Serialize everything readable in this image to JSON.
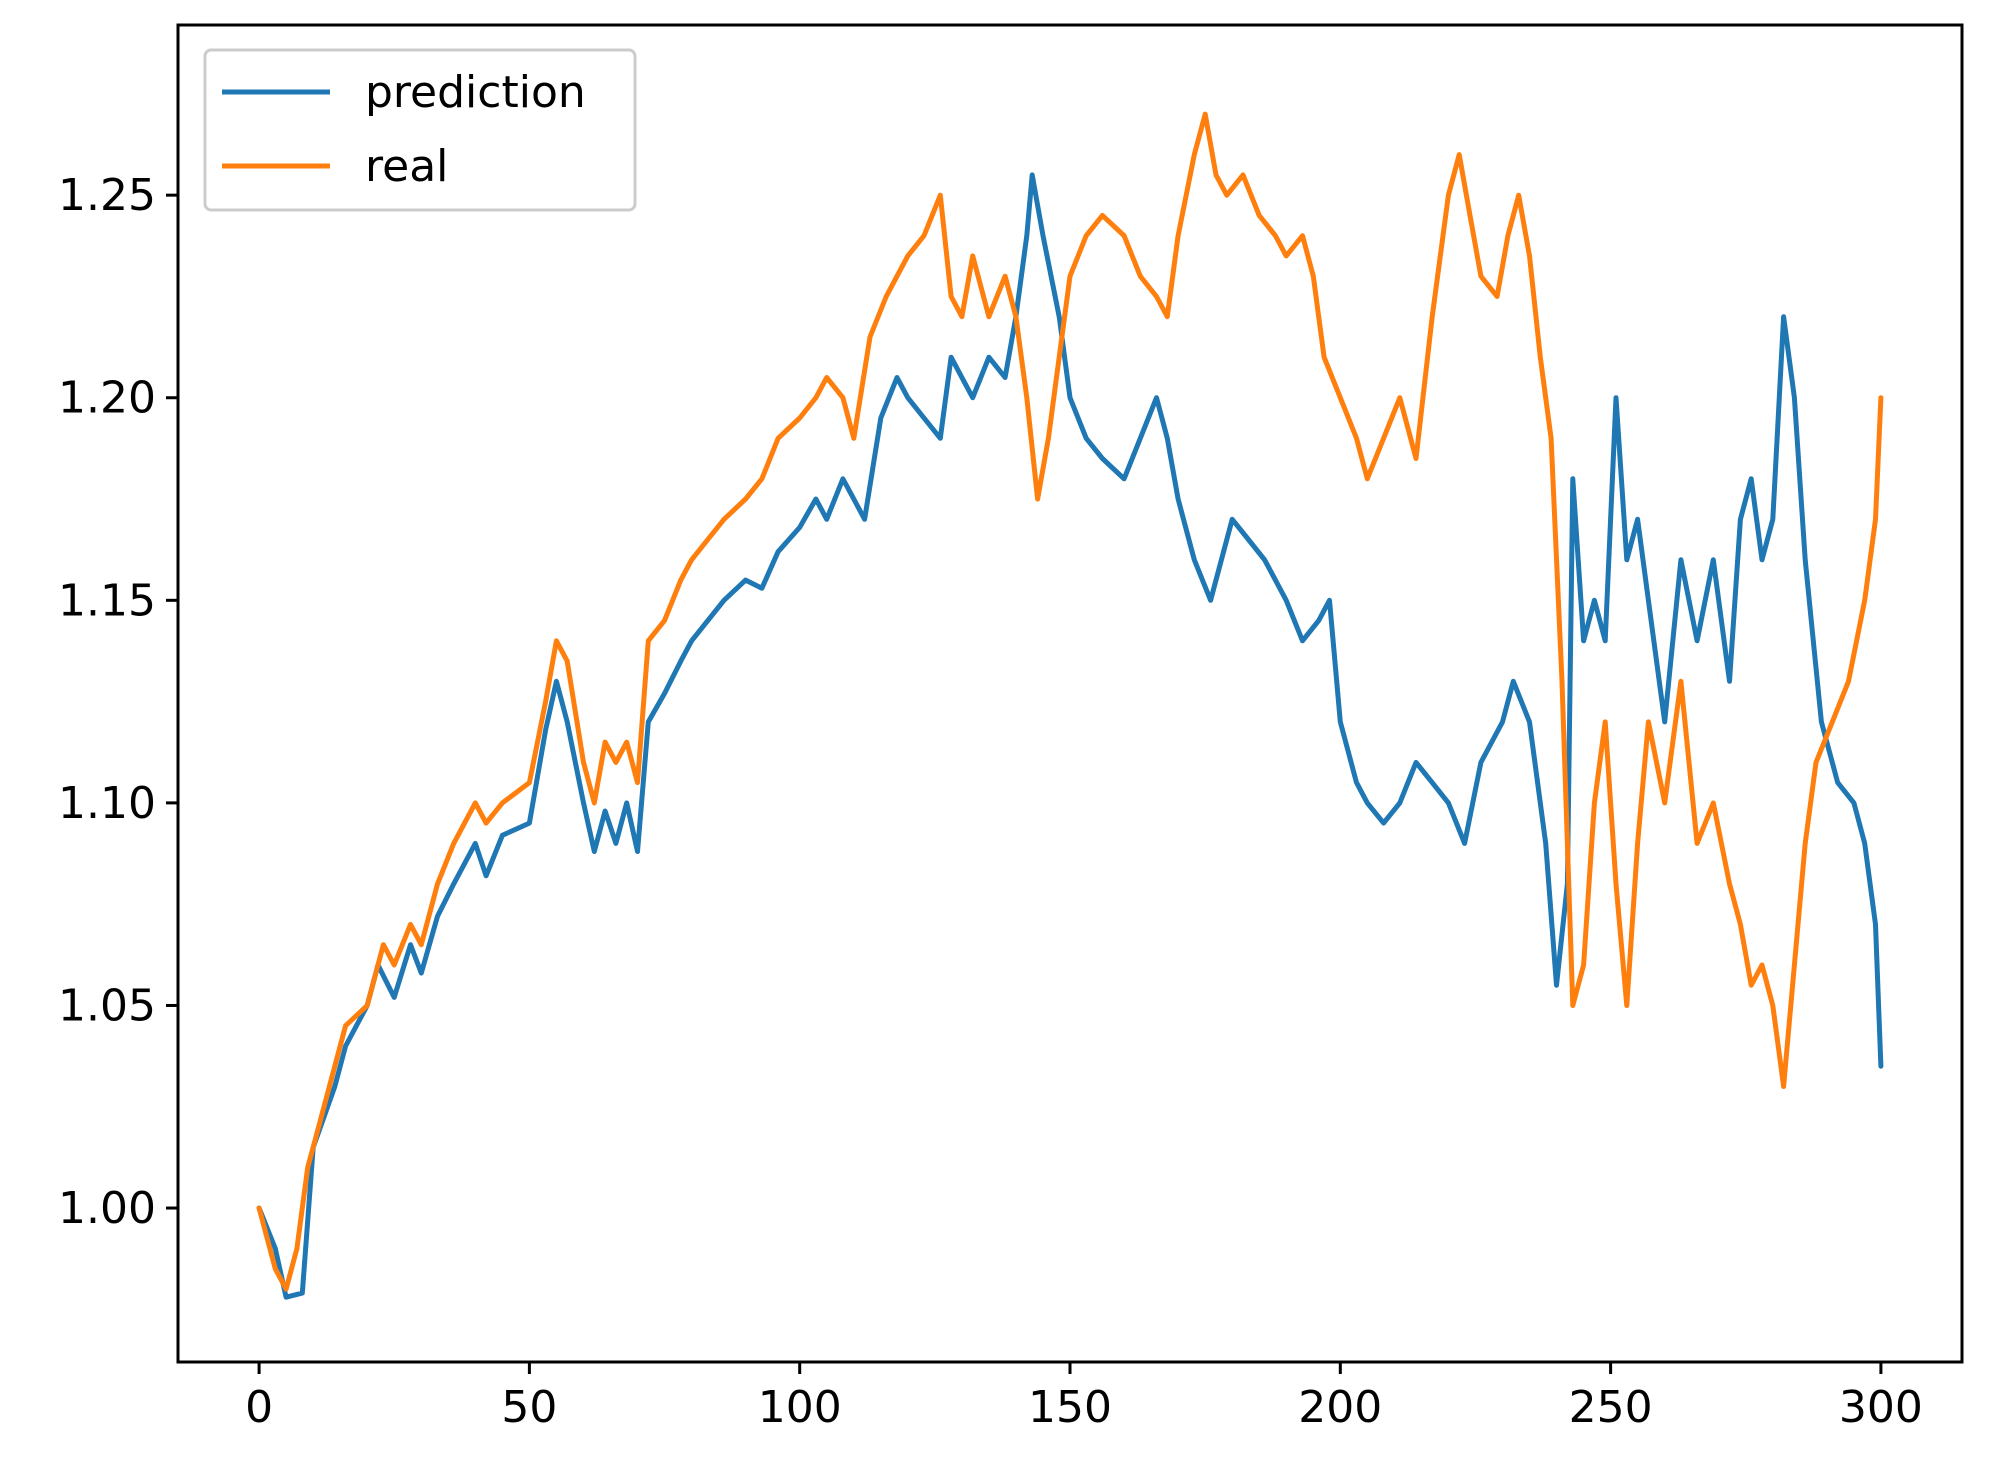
{
  "chart_data": {
    "type": "line",
    "title": "",
    "xlabel": "",
    "ylabel": "",
    "xlim": [
      -15,
      315
    ],
    "ylim": [
      0.962,
      1.292
    ],
    "x_ticks": [
      0,
      50,
      100,
      150,
      200,
      250,
      300
    ],
    "x_tick_labels": [
      "0",
      "50",
      "100",
      "150",
      "200",
      "250",
      "300"
    ],
    "y_ticks": [
      1.0,
      1.05,
      1.1,
      1.15,
      1.2,
      1.25
    ],
    "y_tick_labels": [
      "1.00",
      "1.05",
      "1.10",
      "1.15",
      "1.20",
      "1.25"
    ],
    "grid": false,
    "legend_position": "top-left",
    "series": [
      {
        "name": "prediction",
        "color": "#1f77b4",
        "points": [
          [
            0,
            1.0
          ],
          [
            3,
            0.99
          ],
          [
            5,
            0.978
          ],
          [
            8,
            0.979
          ],
          [
            10,
            1.015
          ],
          [
            14,
            1.03
          ],
          [
            16,
            1.04
          ],
          [
            20,
            1.05
          ],
          [
            22,
            1.06
          ],
          [
            25,
            1.052
          ],
          [
            28,
            1.065
          ],
          [
            30,
            1.058
          ],
          [
            33,
            1.072
          ],
          [
            36,
            1.08
          ],
          [
            40,
            1.09
          ],
          [
            42,
            1.082
          ],
          [
            45,
            1.092
          ],
          [
            50,
            1.095
          ],
          [
            53,
            1.118
          ],
          [
            55,
            1.13
          ],
          [
            57,
            1.12
          ],
          [
            60,
            1.1
          ],
          [
            62,
            1.088
          ],
          [
            64,
            1.098
          ],
          [
            66,
            1.09
          ],
          [
            68,
            1.1
          ],
          [
            70,
            1.088
          ],
          [
            72,
            1.12
          ],
          [
            75,
            1.127
          ],
          [
            78,
            1.135
          ],
          [
            80,
            1.14
          ],
          [
            83,
            1.145
          ],
          [
            86,
            1.15
          ],
          [
            90,
            1.155
          ],
          [
            93,
            1.153
          ],
          [
            96,
            1.162
          ],
          [
            100,
            1.168
          ],
          [
            103,
            1.175
          ],
          [
            105,
            1.17
          ],
          [
            108,
            1.18
          ],
          [
            110,
            1.175
          ],
          [
            112,
            1.17
          ],
          [
            115,
            1.195
          ],
          [
            118,
            1.205
          ],
          [
            120,
            1.2
          ],
          [
            123,
            1.195
          ],
          [
            126,
            1.19
          ],
          [
            128,
            1.21
          ],
          [
            130,
            1.205
          ],
          [
            132,
            1.2
          ],
          [
            135,
            1.21
          ],
          [
            138,
            1.205
          ],
          [
            140,
            1.22
          ],
          [
            142,
            1.24
          ],
          [
            143,
            1.255
          ],
          [
            145,
            1.24
          ],
          [
            148,
            1.22
          ],
          [
            150,
            1.2
          ],
          [
            153,
            1.19
          ],
          [
            156,
            1.185
          ],
          [
            160,
            1.18
          ],
          [
            163,
            1.19
          ],
          [
            166,
            1.2
          ],
          [
            168,
            1.19
          ],
          [
            170,
            1.175
          ],
          [
            173,
            1.16
          ],
          [
            176,
            1.15
          ],
          [
            180,
            1.17
          ],
          [
            183,
            1.165
          ],
          [
            186,
            1.16
          ],
          [
            190,
            1.15
          ],
          [
            193,
            1.14
          ],
          [
            196,
            1.145
          ],
          [
            198,
            1.15
          ],
          [
            200,
            1.12
          ],
          [
            203,
            1.105
          ],
          [
            205,
            1.1
          ],
          [
            208,
            1.095
          ],
          [
            211,
            1.1
          ],
          [
            214,
            1.11
          ],
          [
            217,
            1.105
          ],
          [
            220,
            1.1
          ],
          [
            223,
            1.09
          ],
          [
            226,
            1.11
          ],
          [
            230,
            1.12
          ],
          [
            232,
            1.13
          ],
          [
            235,
            1.12
          ],
          [
            238,
            1.09
          ],
          [
            240,
            1.055
          ],
          [
            242,
            1.08
          ],
          [
            243,
            1.18
          ],
          [
            245,
            1.14
          ],
          [
            247,
            1.15
          ],
          [
            249,
            1.14
          ],
          [
            251,
            1.2
          ],
          [
            253,
            1.16
          ],
          [
            255,
            1.17
          ],
          [
            257,
            1.15
          ],
          [
            260,
            1.12
          ],
          [
            263,
            1.16
          ],
          [
            266,
            1.14
          ],
          [
            269,
            1.16
          ],
          [
            272,
            1.13
          ],
          [
            274,
            1.17
          ],
          [
            276,
            1.18
          ],
          [
            278,
            1.16
          ],
          [
            280,
            1.17
          ],
          [
            282,
            1.22
          ],
          [
            284,
            1.2
          ],
          [
            286,
            1.16
          ],
          [
            289,
            1.12
          ],
          [
            292,
            1.105
          ],
          [
            295,
            1.1
          ],
          [
            297,
            1.09
          ],
          [
            299,
            1.07
          ],
          [
            300,
            1.035
          ]
        ]
      },
      {
        "name": "real",
        "color": "#ff7f0e",
        "points": [
          [
            0,
            1.0
          ],
          [
            3,
            0.985
          ],
          [
            5,
            0.98
          ],
          [
            7,
            0.99
          ],
          [
            9,
            1.01
          ],
          [
            11,
            1.02
          ],
          [
            14,
            1.035
          ],
          [
            16,
            1.045
          ],
          [
            20,
            1.05
          ],
          [
            23,
            1.065
          ],
          [
            25,
            1.06
          ],
          [
            28,
            1.07
          ],
          [
            30,
            1.065
          ],
          [
            33,
            1.08
          ],
          [
            36,
            1.09
          ],
          [
            40,
            1.1
          ],
          [
            42,
            1.095
          ],
          [
            45,
            1.1
          ],
          [
            50,
            1.105
          ],
          [
            53,
            1.125
          ],
          [
            55,
            1.14
          ],
          [
            57,
            1.135
          ],
          [
            60,
            1.11
          ],
          [
            62,
            1.1
          ],
          [
            64,
            1.115
          ],
          [
            66,
            1.11
          ],
          [
            68,
            1.115
          ],
          [
            70,
            1.105
          ],
          [
            72,
            1.14
          ],
          [
            75,
            1.145
          ],
          [
            78,
            1.155
          ],
          [
            80,
            1.16
          ],
          [
            83,
            1.165
          ],
          [
            86,
            1.17
          ],
          [
            90,
            1.175
          ],
          [
            93,
            1.18
          ],
          [
            96,
            1.19
          ],
          [
            100,
            1.195
          ],
          [
            103,
            1.2
          ],
          [
            105,
            1.205
          ],
          [
            108,
            1.2
          ],
          [
            110,
            1.19
          ],
          [
            113,
            1.215
          ],
          [
            116,
            1.225
          ],
          [
            120,
            1.235
          ],
          [
            123,
            1.24
          ],
          [
            126,
            1.25
          ],
          [
            128,
            1.225
          ],
          [
            130,
            1.22
          ],
          [
            132,
            1.235
          ],
          [
            135,
            1.22
          ],
          [
            138,
            1.23
          ],
          [
            140,
            1.22
          ],
          [
            142,
            1.2
          ],
          [
            144,
            1.175
          ],
          [
            146,
            1.19
          ],
          [
            148,
            1.21
          ],
          [
            150,
            1.23
          ],
          [
            153,
            1.24
          ],
          [
            156,
            1.245
          ],
          [
            160,
            1.24
          ],
          [
            163,
            1.23
          ],
          [
            166,
            1.225
          ],
          [
            168,
            1.22
          ],
          [
            170,
            1.24
          ],
          [
            173,
            1.26
          ],
          [
            175,
            1.27
          ],
          [
            177,
            1.255
          ],
          [
            179,
            1.25
          ],
          [
            182,
            1.255
          ],
          [
            185,
            1.245
          ],
          [
            188,
            1.24
          ],
          [
            190,
            1.235
          ],
          [
            193,
            1.24
          ],
          [
            195,
            1.23
          ],
          [
            197,
            1.21
          ],
          [
            200,
            1.2
          ],
          [
            203,
            1.19
          ],
          [
            205,
            1.18
          ],
          [
            208,
            1.19
          ],
          [
            211,
            1.2
          ],
          [
            214,
            1.185
          ],
          [
            217,
            1.22
          ],
          [
            220,
            1.25
          ],
          [
            222,
            1.26
          ],
          [
            224,
            1.245
          ],
          [
            226,
            1.23
          ],
          [
            229,
            1.225
          ],
          [
            231,
            1.24
          ],
          [
            233,
            1.25
          ],
          [
            235,
            1.235
          ],
          [
            237,
            1.21
          ],
          [
            239,
            1.19
          ],
          [
            241,
            1.13
          ],
          [
            243,
            1.05
          ],
          [
            245,
            1.06
          ],
          [
            247,
            1.1
          ],
          [
            249,
            1.12
          ],
          [
            251,
            1.08
          ],
          [
            253,
            1.05
          ],
          [
            255,
            1.09
          ],
          [
            257,
            1.12
          ],
          [
            260,
            1.1
          ],
          [
            263,
            1.13
          ],
          [
            266,
            1.09
          ],
          [
            269,
            1.1
          ],
          [
            272,
            1.08
          ],
          [
            274,
            1.07
          ],
          [
            276,
            1.055
          ],
          [
            278,
            1.06
          ],
          [
            280,
            1.05
          ],
          [
            282,
            1.03
          ],
          [
            284,
            1.06
          ],
          [
            286,
            1.09
          ],
          [
            288,
            1.11
          ],
          [
            291,
            1.12
          ],
          [
            294,
            1.13
          ],
          [
            297,
            1.15
          ],
          [
            299,
            1.17
          ],
          [
            300,
            1.2
          ]
        ]
      }
    ]
  }
}
